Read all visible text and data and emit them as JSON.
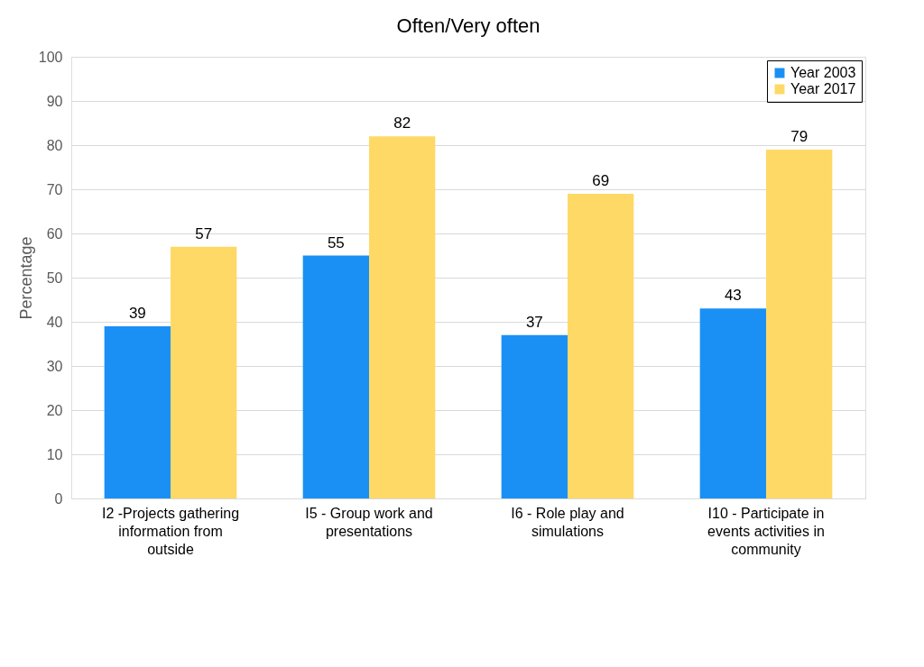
{
  "chart_data": {
    "type": "bar",
    "title": "Often/Very often",
    "ylabel": "Percentage",
    "categories": [
      "I2 -Projects gathering information from outside",
      "I5 - Group work and presentations",
      "I6 - Role play and simulations",
      "I10 - Participate in events activities in community"
    ],
    "series": [
      {
        "name": "Year 2003",
        "color": "#1a90f5",
        "values": [
          39,
          55,
          37,
          43
        ]
      },
      {
        "name": "Year 2017",
        "color": "#ffd966",
        "values": [
          57,
          82,
          69,
          79
        ]
      }
    ],
    "ylim": [
      0,
      100
    ],
    "yticks": [
      0,
      10,
      20,
      30,
      40,
      50,
      60,
      70,
      80,
      90,
      100
    ],
    "grid": "y",
    "legend": "top right",
    "data_labels": true
  }
}
